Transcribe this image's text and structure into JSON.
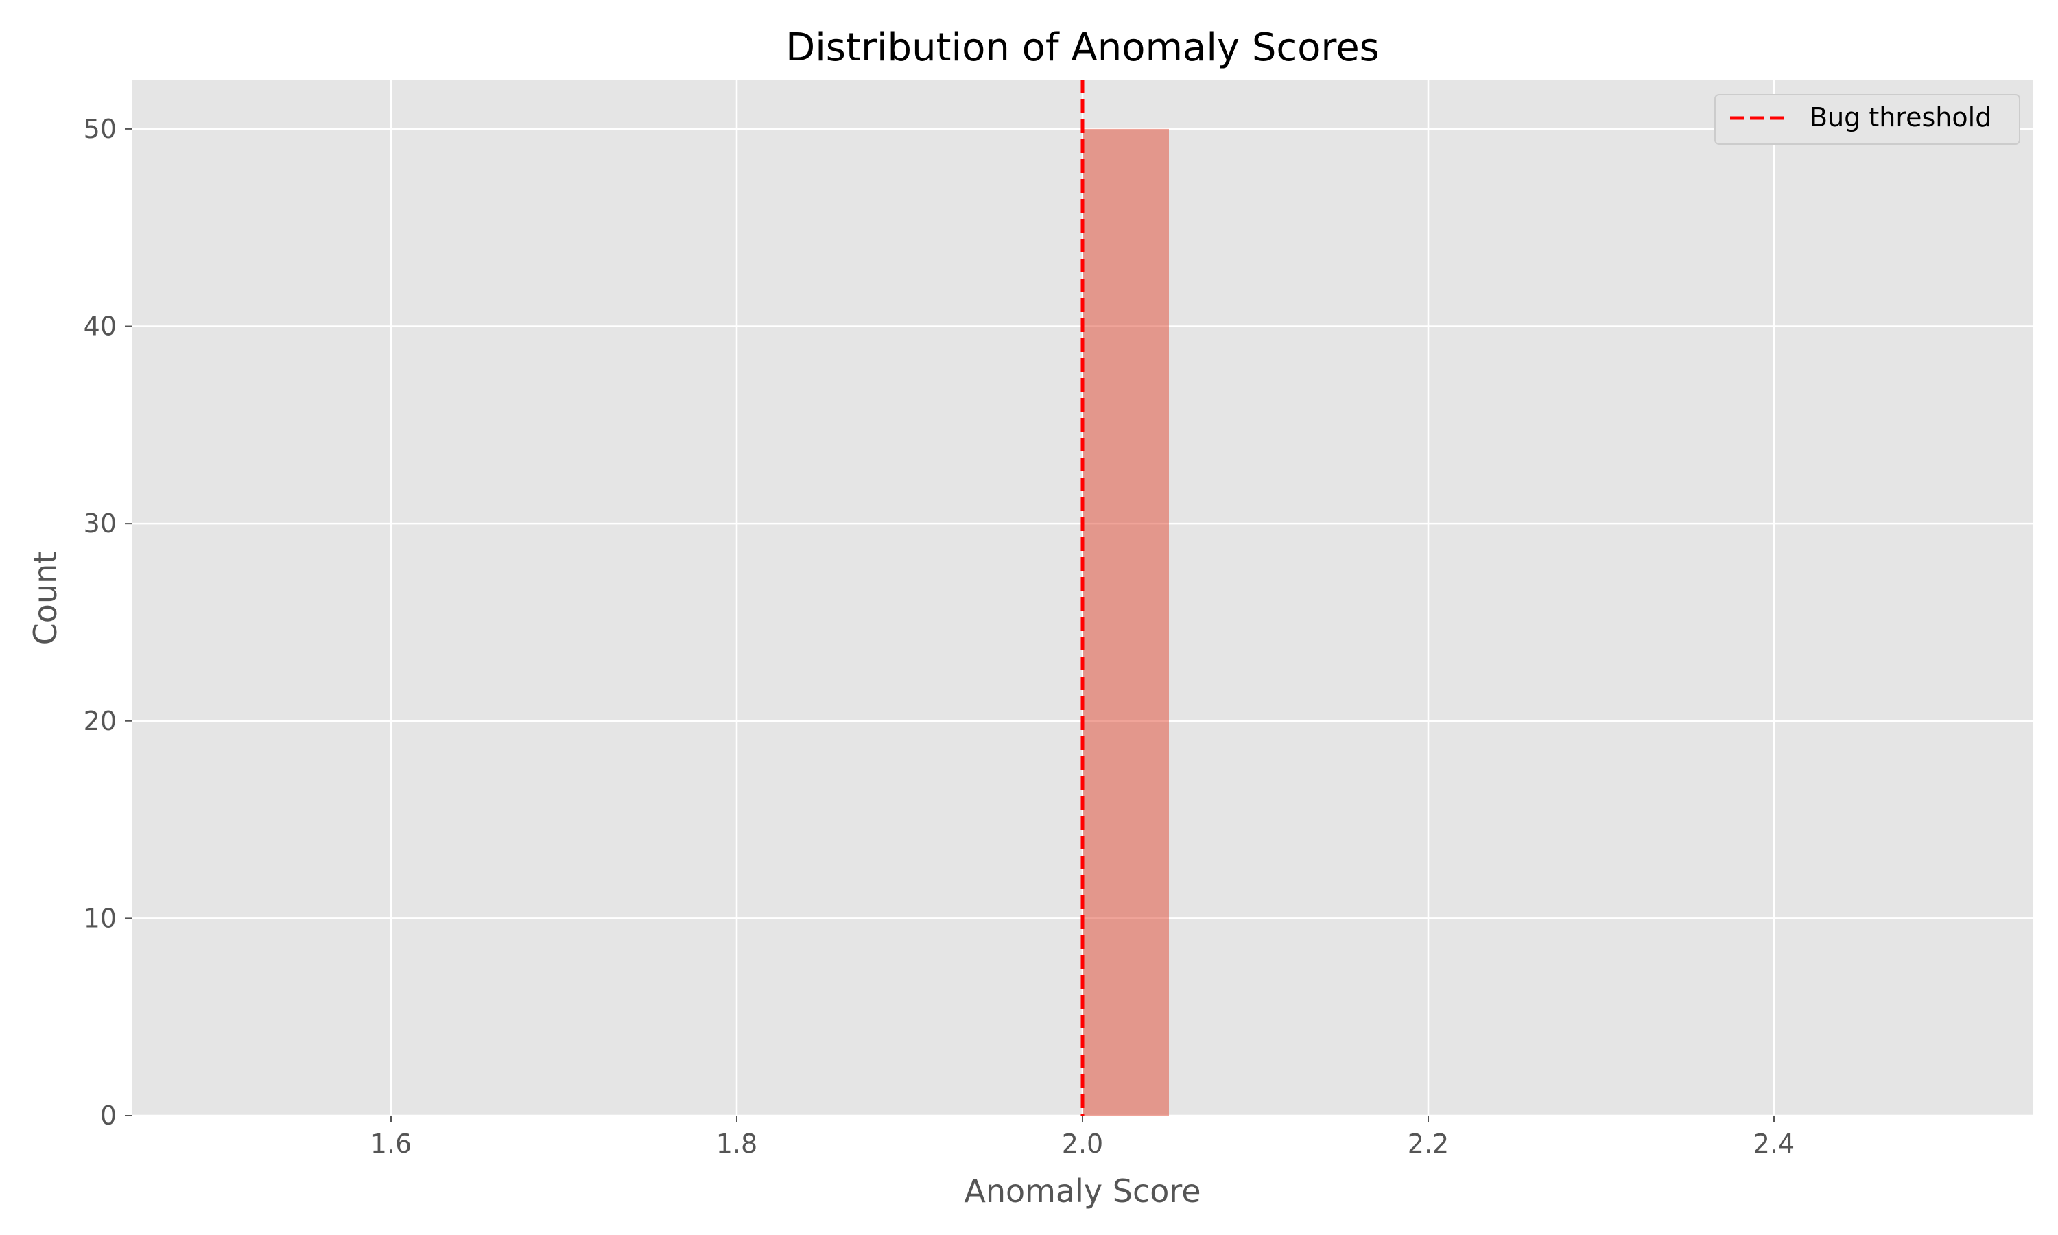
{
  "chart_data": {
    "type": "bar",
    "title": "Distribution of Anomaly Scores",
    "xlabel": "Anomaly Score",
    "ylabel": "Count",
    "xlim": [
      1.45,
      2.55
    ],
    "ylim": [
      0,
      52.5
    ],
    "xticks": [
      1.6,
      1.8,
      2.0,
      2.2,
      2.4
    ],
    "yticks": [
      0,
      10,
      20,
      30,
      40,
      50
    ],
    "bins": [
      {
        "x_start": 2.0,
        "x_end": 2.05,
        "count": 50
      }
    ],
    "threshold": {
      "name": "Bug threshold",
      "x": 2.0
    },
    "grid": true,
    "legend_position": "top-right",
    "colors": {
      "background": "#E5E5E5",
      "grid": "#FFFFFF",
      "bar": "#E24A33",
      "bar_opacity": 0.5,
      "threshold": "#FF0000",
      "axis_text": "#555555"
    }
  }
}
